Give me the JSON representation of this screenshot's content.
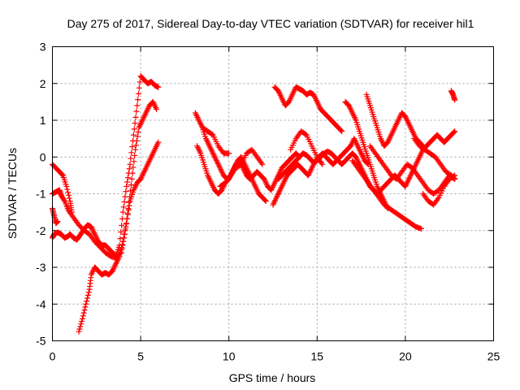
{
  "chart_data": {
    "type": "scatter",
    "title": "Day 275 of 2017, Sidereal Day-to-day VTEC variation (SDTVAR) for receiver hil1",
    "xlabel": "GPS time / hours",
    "ylabel": "SDTVAR / TECUs",
    "xlim": [
      0,
      25
    ],
    "ylim": [
      -5,
      3
    ],
    "xticks": [
      0,
      5,
      10,
      15,
      20,
      25
    ],
    "yticks": [
      -5,
      -4,
      -3,
      -2,
      -1,
      0,
      1,
      2,
      3
    ],
    "grid": true,
    "marker": "plus",
    "color": "#ff0000",
    "series": [
      {
        "x": [
          0.0,
          0.2,
          0.4,
          0.5,
          0.7,
          0.9,
          1.2,
          1.5,
          1.8,
          2.1,
          2.4,
          2.7,
          3.0,
          3.3,
          3.6,
          3.9,
          4.1,
          4.3,
          4.5,
          4.7,
          4.9,
          5.1,
          5.3,
          5.5,
          5.7,
          5.9
        ],
        "y": [
          -1.0,
          -0.95,
          -0.9,
          -1.05,
          -1.2,
          -1.45,
          -1.65,
          -1.85,
          -2.0,
          -2.1,
          -2.3,
          -2.45,
          -2.6,
          -2.7,
          -2.75,
          -2.6,
          -2.1,
          -1.4,
          -0.6,
          0.2,
          0.8,
          1.0,
          1.2,
          1.4,
          1.5,
          1.3
        ]
      },
      {
        "x": [
          0.0,
          0.1,
          0.3,
          0.5,
          0.7,
          0.9,
          1.0,
          1.2,
          1.4,
          1.6,
          1.8,
          2.0,
          2.2,
          2.4,
          2.6,
          2.8,
          3.0,
          3.2,
          3.4,
          3.6,
          3.8,
          4.0,
          4.2,
          4.4,
          4.6,
          4.8,
          5.0,
          5.2,
          5.4,
          5.6,
          5.8,
          6.0
        ],
        "y": [
          -2.2,
          -2.1,
          -2.05,
          -2.1,
          -2.2,
          -2.15,
          -2.1,
          -2.2,
          -2.25,
          -2.1,
          -1.95,
          -1.85,
          -1.9,
          -2.1,
          -2.3,
          -2.4,
          -2.4,
          -2.5,
          -2.6,
          -2.7,
          -2.4,
          -1.5,
          -0.8,
          -0.2,
          0.6,
          1.4,
          2.2,
          2.1,
          2.0,
          2.05,
          1.95,
          1.9
        ]
      },
      {
        "x": [
          0.0,
          0.2,
          0.4,
          0.6,
          0.8,
          1.0,
          1.1
        ],
        "y": [
          -0.2,
          -0.3,
          -0.4,
          -0.5,
          -0.8,
          -1.2,
          -1.5
        ]
      },
      {
        "x": [
          0.0,
          0.1,
          0.2,
          0.3
        ],
        "y": [
          -1.4,
          -1.6,
          -1.8,
          -1.75
        ]
      },
      {
        "x": [
          1.5,
          1.7,
          1.9,
          2.1,
          2.2,
          2.4,
          2.6,
          2.8,
          3.0,
          3.2,
          3.4,
          3.6,
          3.8,
          4.0,
          4.2,
          4.4,
          4.6,
          4.8,
          5.0,
          5.2,
          5.4,
          5.6,
          5.8,
          6.0
        ],
        "y": [
          -4.75,
          -4.4,
          -4.0,
          -3.6,
          -3.2,
          -3.0,
          -3.1,
          -3.2,
          -3.15,
          -3.2,
          -3.1,
          -2.9,
          -2.7,
          -2.3,
          -1.8,
          -1.2,
          -0.9,
          -0.7,
          -0.6,
          -0.4,
          -0.2,
          0.0,
          0.2,
          0.4
        ]
      },
      {
        "x": [
          8.1,
          8.3,
          8.5,
          8.7,
          8.9,
          9.1,
          9.3,
          9.5,
          9.7,
          9.9,
          10.1,
          10.3,
          10.5,
          10.7,
          10.9,
          11.1,
          11.3,
          11.5,
          11.7,
          11.9,
          12.1
        ],
        "y": [
          1.2,
          1.0,
          0.8,
          0.5,
          0.3,
          0.1,
          -0.1,
          -0.3,
          -0.5,
          -0.6,
          -0.5,
          -0.3,
          -0.1,
          0.0,
          -0.2,
          -0.4,
          -0.6,
          -0.8,
          -1.0,
          -1.1,
          -1.2
        ]
      },
      {
        "x": [
          8.2,
          8.4,
          8.6,
          8.8,
          9.0,
          9.2,
          9.4,
          9.6,
          9.8,
          10.0,
          10.2,
          10.4,
          10.6,
          10.8,
          11.0,
          11.2,
          11.4,
          11.6,
          11.8,
          12.0,
          12.2,
          12.4,
          12.6,
          12.8,
          13.0,
          13.2,
          13.4,
          13.6,
          13.8,
          14.0
        ],
        "y": [
          0.3,
          0.1,
          -0.2,
          -0.5,
          -0.7,
          -0.9,
          -1.0,
          -0.9,
          -0.7,
          -0.6,
          -0.4,
          -0.2,
          -0.1,
          -0.3,
          -0.5,
          -0.6,
          -0.5,
          -0.4,
          -0.5,
          -0.6,
          -0.8,
          -0.9,
          -0.7,
          -0.5,
          -0.3,
          -0.2,
          -0.1,
          0.0,
          0.1,
          0.0
        ]
      },
      {
        "x": [
          8.5,
          8.8,
          9.1,
          9.4,
          9.7,
          10.0
        ],
        "y": [
          0.8,
          0.7,
          0.6,
          0.3,
          0.1,
          0.1
        ]
      },
      {
        "x": [
          9.5,
          9.8,
          10.1,
          10.4,
          10.7,
          11.0,
          11.3,
          11.6,
          11.9
        ],
        "y": [
          -0.8,
          -0.7,
          -0.5,
          -0.3,
          -0.2,
          0.1,
          0.2,
          0.0,
          -0.2
        ]
      },
      {
        "x": [
          12.5,
          12.7,
          12.9,
          13.1,
          13.3,
          13.5,
          13.7,
          13.9,
          14.1,
          14.3,
          14.5,
          14.7,
          14.9,
          15.1,
          15.3,
          15.5,
          15.7,
          15.9,
          16.1,
          16.3,
          16.5,
          16.7,
          16.9,
          17.1,
          17.3,
          17.5,
          17.7,
          17.9
        ],
        "y": [
          -1.3,
          -1.1,
          -0.9,
          -0.7,
          -0.5,
          -0.4,
          -0.3,
          -0.2,
          -0.3,
          -0.4,
          -0.5,
          -0.3,
          -0.1,
          0.0,
          0.1,
          0.0,
          -0.1,
          -0.2,
          -0.1,
          0.0,
          0.1,
          0.2,
          0.3,
          0.5,
          0.3,
          0.1,
          -0.1,
          -0.2
        ]
      },
      {
        "x": [
          12.8,
          13.0,
          13.2,
          13.4,
          13.6,
          13.8,
          14.0,
          14.2,
          14.4,
          14.6,
          14.8,
          15.0,
          15.2,
          15.4,
          15.6,
          15.8,
          16.0,
          16.2,
          16.4,
          16.6,
          16.8,
          17.0,
          17.2,
          17.4,
          17.6,
          17.8,
          18.0,
          18.2,
          18.4,
          18.6,
          18.8,
          19.0,
          19.2,
          19.4,
          19.6,
          19.8,
          20.0,
          20.2,
          20.4,
          20.6,
          20.8,
          21.0,
          21.2,
          21.4,
          21.6,
          21.8,
          22.0,
          22.2,
          22.4,
          22.6,
          22.8
        ],
        "y": [
          -0.6,
          -0.5,
          -0.4,
          -0.3,
          -0.2,
          -0.1,
          0.0,
          0.1,
          0.05,
          -0.05,
          -0.15,
          -0.1,
          0.0,
          0.1,
          0.15,
          0.1,
          0.0,
          -0.1,
          -0.2,
          -0.1,
          0.0,
          0.1,
          0.0,
          -0.2,
          -0.4,
          -0.6,
          -0.8,
          -0.9,
          -1.0,
          -0.9,
          -0.8,
          -0.7,
          -0.6,
          -0.5,
          -0.6,
          -0.7,
          -0.8,
          -0.6,
          -0.4,
          -0.2,
          0.0,
          0.2,
          0.3,
          0.4,
          0.5,
          0.6,
          0.5,
          0.4,
          0.5,
          0.6,
          0.7
        ]
      },
      {
        "x": [
          12.6,
          12.8,
          13.0,
          13.2,
          13.4,
          13.6,
          13.8,
          14.0,
          14.2,
          14.4,
          14.6,
          14.8,
          15.0,
          15.2,
          15.4,
          15.6,
          15.8,
          16.0,
          16.2,
          16.4
        ],
        "y": [
          1.9,
          1.8,
          1.6,
          1.4,
          1.5,
          1.7,
          1.9,
          1.85,
          1.8,
          1.7,
          1.75,
          1.7,
          1.5,
          1.3,
          1.2,
          1.1,
          1.0,
          0.9,
          0.8,
          0.7
        ]
      },
      {
        "x": [
          13.5,
          13.8,
          14.1,
          14.4,
          14.7,
          15.0,
          15.3
        ],
        "y": [
          0.2,
          0.5,
          0.7,
          0.6,
          0.3,
          0.0,
          -0.2
        ]
      },
      {
        "x": [
          16.6,
          16.8,
          17.0,
          17.2,
          17.4,
          17.6,
          17.8,
          18.0,
          18.2,
          18.4,
          18.6,
          18.8,
          19.0
        ],
        "y": [
          1.5,
          1.4,
          1.2,
          1.0,
          0.7,
          0.4,
          0.1,
          -0.2,
          -0.5,
          -0.8,
          -1.0,
          -1.2,
          -1.4
        ]
      },
      {
        "x": [
          17.8,
          18.0,
          18.2,
          18.4,
          18.6,
          18.8,
          19.0,
          19.2,
          19.4,
          19.6,
          19.8,
          20.0,
          20.2,
          20.4,
          20.6,
          20.8,
          21.0
        ],
        "y": [
          1.7,
          1.4,
          1.1,
          0.8,
          0.5,
          0.3,
          0.4,
          0.6,
          0.8,
          1.0,
          1.2,
          1.1,
          0.9,
          0.7,
          0.5,
          0.4,
          0.3
        ]
      },
      {
        "x": [
          17.0,
          17.3,
          17.6,
          17.9,
          18.2,
          18.5,
          18.8,
          19.1,
          19.4,
          19.7,
          20.0,
          20.3,
          20.6,
          20.9
        ],
        "y": [
          -0.1,
          -0.3,
          -0.5,
          -0.7,
          -0.9,
          -1.1,
          -1.3,
          -1.4,
          -1.5,
          -1.6,
          -1.7,
          -1.8,
          -1.9,
          -1.95
        ]
      },
      {
        "x": [
          18.0,
          18.3,
          18.6,
          18.9,
          19.2,
          19.5,
          19.8,
          20.1,
          20.4,
          20.7,
          21.0,
          21.3,
          21.6,
          21.9,
          22.2,
          22.5,
          22.8
        ],
        "y": [
          0.3,
          0.1,
          -0.1,
          -0.3,
          -0.5,
          -0.6,
          -0.4,
          -0.2,
          -0.3,
          -0.5,
          -0.7,
          -0.9,
          -1.0,
          -0.9,
          -0.7,
          -0.5,
          -0.6
        ]
      },
      {
        "x": [
          20.5,
          20.8,
          21.1,
          21.4,
          21.7,
          22.0,
          22.3,
          22.6,
          22.8
        ],
        "y": [
          0.5,
          0.3,
          0.2,
          0.1,
          0.0,
          -0.2,
          -0.4,
          -0.5,
          -0.6
        ]
      },
      {
        "x": [
          21.0,
          21.3,
          21.6,
          21.9,
          22.2,
          22.5,
          22.8
        ],
        "y": [
          -1.0,
          -1.2,
          -1.3,
          -1.1,
          -0.8,
          -0.6,
          -0.5
        ]
      },
      {
        "x": [
          22.6,
          22.7,
          22.8
        ],
        "y": [
          1.8,
          1.7,
          1.55
        ]
      }
    ]
  }
}
